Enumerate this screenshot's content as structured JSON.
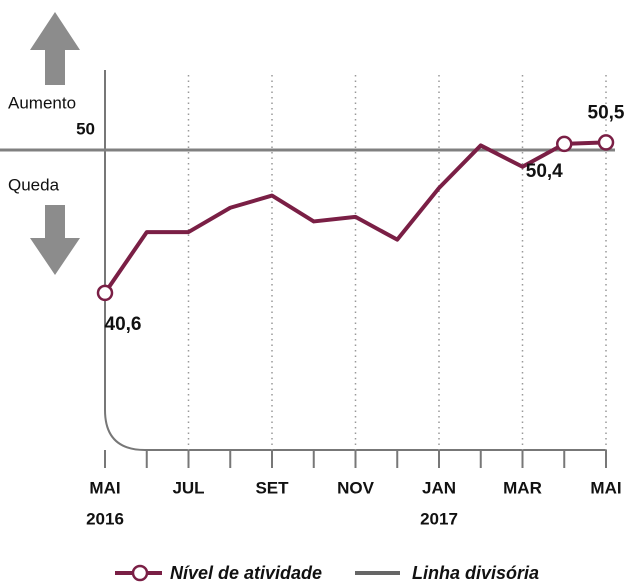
{
  "chart_data": {
    "type": "line",
    "categories": [
      "MAI",
      null,
      "JUL",
      null,
      "SET",
      null,
      "NOV",
      null,
      "JAN",
      null,
      "MAR",
      null,
      "MAI"
    ],
    "x_sublabels": [
      "2016",
      null,
      null,
      null,
      null,
      null,
      null,
      null,
      "2017",
      null,
      null,
      null,
      null
    ],
    "series": [
      {
        "name": "Nível de atividade",
        "color": "#7a1f45",
        "values": [
          40.6,
          44.6,
          44.6,
          46.2,
          47.0,
          45.3,
          45.6,
          44.1,
          47.5,
          50.3,
          48.9,
          50.4,
          50.5
        ],
        "value_labels": [
          "40,6",
          null,
          null,
          null,
          null,
          null,
          null,
          null,
          null,
          null,
          null,
          "50,4",
          "50,5"
        ]
      }
    ],
    "reference_line": {
      "name": "Linha divisória",
      "value": 50,
      "color": "#808080"
    },
    "ylim": [
      30,
      55
    ],
    "yticks": [
      50
    ],
    "grid": true,
    "annotations": [
      "Aumento",
      "Queda"
    ]
  }
}
